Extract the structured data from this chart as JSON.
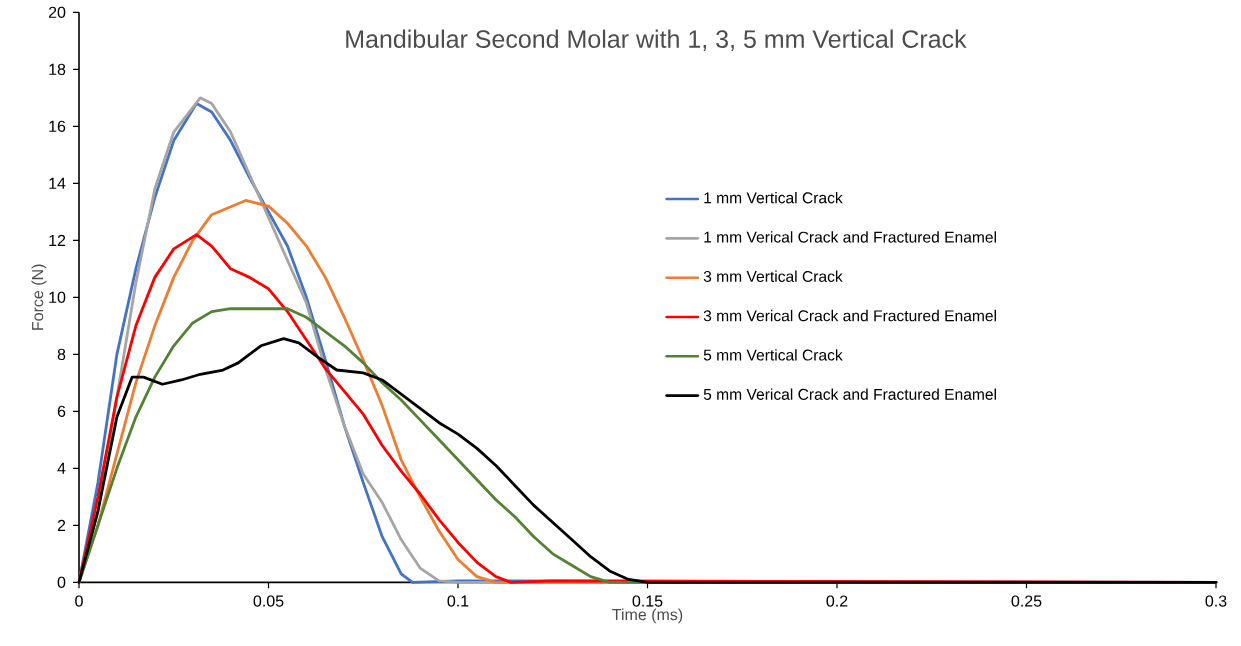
{
  "chart_data": {
    "type": "line",
    "title": "Mandibular Second Molar with 1, 3, 5 mm Vertical Crack",
    "xlabel": "Time (ms)",
    "ylabel": "Force (N)",
    "xlim": [
      0,
      0.3
    ],
    "ylim": [
      0,
      20
    ],
    "xticks": [
      0,
      0.05,
      0.1,
      0.15,
      0.2,
      0.25,
      0.3
    ],
    "yticks": [
      0,
      2,
      4,
      6,
      8,
      10,
      12,
      14,
      16,
      18,
      20
    ],
    "grid": false,
    "legend": "center right",
    "marker": "none",
    "line_style": "solid",
    "series": [
      {
        "name": "1 mm Vertical Crack",
        "color": "#4472c4",
        "x": [
          0,
          0.005,
          0.01,
          0.015,
          0.02,
          0.025,
          0.031,
          0.035,
          0.04,
          0.045,
          0.05,
          0.055,
          0.06,
          0.065,
          0.07,
          0.075,
          0.08,
          0.085,
          0.088,
          0.1,
          0.3
        ],
        "values": [
          0,
          3.5,
          8,
          11,
          13.5,
          15.5,
          16.8,
          16.5,
          15.5,
          14.2,
          13,
          11.8,
          10,
          7.8,
          5.5,
          3.5,
          1.6,
          0.3,
          0,
          0.05,
          0
        ]
      },
      {
        "name": "1 mm Verical Crack and Fractured Enamel",
        "color": "#a5a5a5",
        "x": [
          0,
          0.005,
          0.01,
          0.015,
          0.02,
          0.025,
          0.032,
          0.035,
          0.04,
          0.045,
          0.05,
          0.055,
          0.06,
          0.065,
          0.07,
          0.075,
          0.08,
          0.085,
          0.09,
          0.095,
          0.1,
          0.3
        ],
        "values": [
          0,
          2.5,
          6.5,
          10.5,
          13.8,
          15.8,
          17,
          16.8,
          15.8,
          14.3,
          12.8,
          11.3,
          9.8,
          7.5,
          5.5,
          3.8,
          2.8,
          1.5,
          0.5,
          0.05,
          0,
          0
        ]
      },
      {
        "name": "3 mm Vertical Crack",
        "color": "#ed7d31",
        "x": [
          0,
          0.005,
          0.01,
          0.015,
          0.02,
          0.025,
          0.03,
          0.035,
          0.044,
          0.05,
          0.055,
          0.06,
          0.065,
          0.07,
          0.075,
          0.08,
          0.085,
          0.09,
          0.095,
          0.1,
          0.105,
          0.11,
          0.3
        ],
        "values": [
          0,
          2,
          4.5,
          7,
          9,
          10.7,
          12,
          12.9,
          13.4,
          13.2,
          12.6,
          11.8,
          10.7,
          9.3,
          7.8,
          6.2,
          4.3,
          3,
          1.8,
          0.8,
          0.2,
          0,
          0
        ]
      },
      {
        "name": "3 mm Verical Crack and Fractured Enamel",
        "color": "#ff0000",
        "x": [
          0,
          0.005,
          0.01,
          0.015,
          0.02,
          0.025,
          0.031,
          0.035,
          0.04,
          0.045,
          0.05,
          0.055,
          0.06,
          0.065,
          0.07,
          0.075,
          0.08,
          0.085,
          0.09,
          0.095,
          0.1,
          0.105,
          0.11,
          0.114,
          0.125,
          0.3
        ],
        "values": [
          0,
          3,
          6.5,
          9,
          10.7,
          11.7,
          12.2,
          11.8,
          11,
          10.7,
          10.3,
          9.5,
          8.5,
          7.5,
          6.7,
          5.9,
          4.8,
          3.9,
          3.1,
          2.2,
          1.4,
          0.7,
          0.2,
          0,
          0.05,
          0
        ]
      },
      {
        "name": "5 mm Vertical Crack",
        "color": "#548235",
        "x": [
          0,
          0.005,
          0.01,
          0.015,
          0.02,
          0.025,
          0.03,
          0.035,
          0.04,
          0.05,
          0.055,
          0.06,
          0.065,
          0.07,
          0.075,
          0.08,
          0.085,
          0.09,
          0.095,
          0.1,
          0.105,
          0.11,
          0.115,
          0.12,
          0.125,
          0.13,
          0.135,
          0.14,
          0.3
        ],
        "values": [
          0,
          2,
          4,
          5.8,
          7.2,
          8.3,
          9.1,
          9.5,
          9.6,
          9.6,
          9.6,
          9.3,
          8.8,
          8.3,
          7.7,
          7,
          6.4,
          5.7,
          5,
          4.3,
          3.6,
          2.9,
          2.3,
          1.6,
          1,
          0.6,
          0.2,
          0,
          0
        ]
      },
      {
        "name": "5 mm Verical Crack and Fractured Enamel",
        "color": "#000000",
        "x": [
          0,
          0.005,
          0.01,
          0.014,
          0.017,
          0.022,
          0.027,
          0.032,
          0.038,
          0.042,
          0.048,
          0.054,
          0.058,
          0.063,
          0.068,
          0.075,
          0.08,
          0.085,
          0.09,
          0.095,
          0.1,
          0.105,
          0.11,
          0.115,
          0.12,
          0.125,
          0.13,
          0.135,
          0.14,
          0.145,
          0.15,
          0.3
        ],
        "values": [
          0,
          2.5,
          5.8,
          7.2,
          7.2,
          6.95,
          7.1,
          7.3,
          7.45,
          7.7,
          8.3,
          8.55,
          8.4,
          7.9,
          7.45,
          7.35,
          7.1,
          6.6,
          6.1,
          5.6,
          5.2,
          4.7,
          4.1,
          3.4,
          2.7,
          2.1,
          1.5,
          0.9,
          0.4,
          0.1,
          0,
          0
        ]
      }
    ]
  }
}
